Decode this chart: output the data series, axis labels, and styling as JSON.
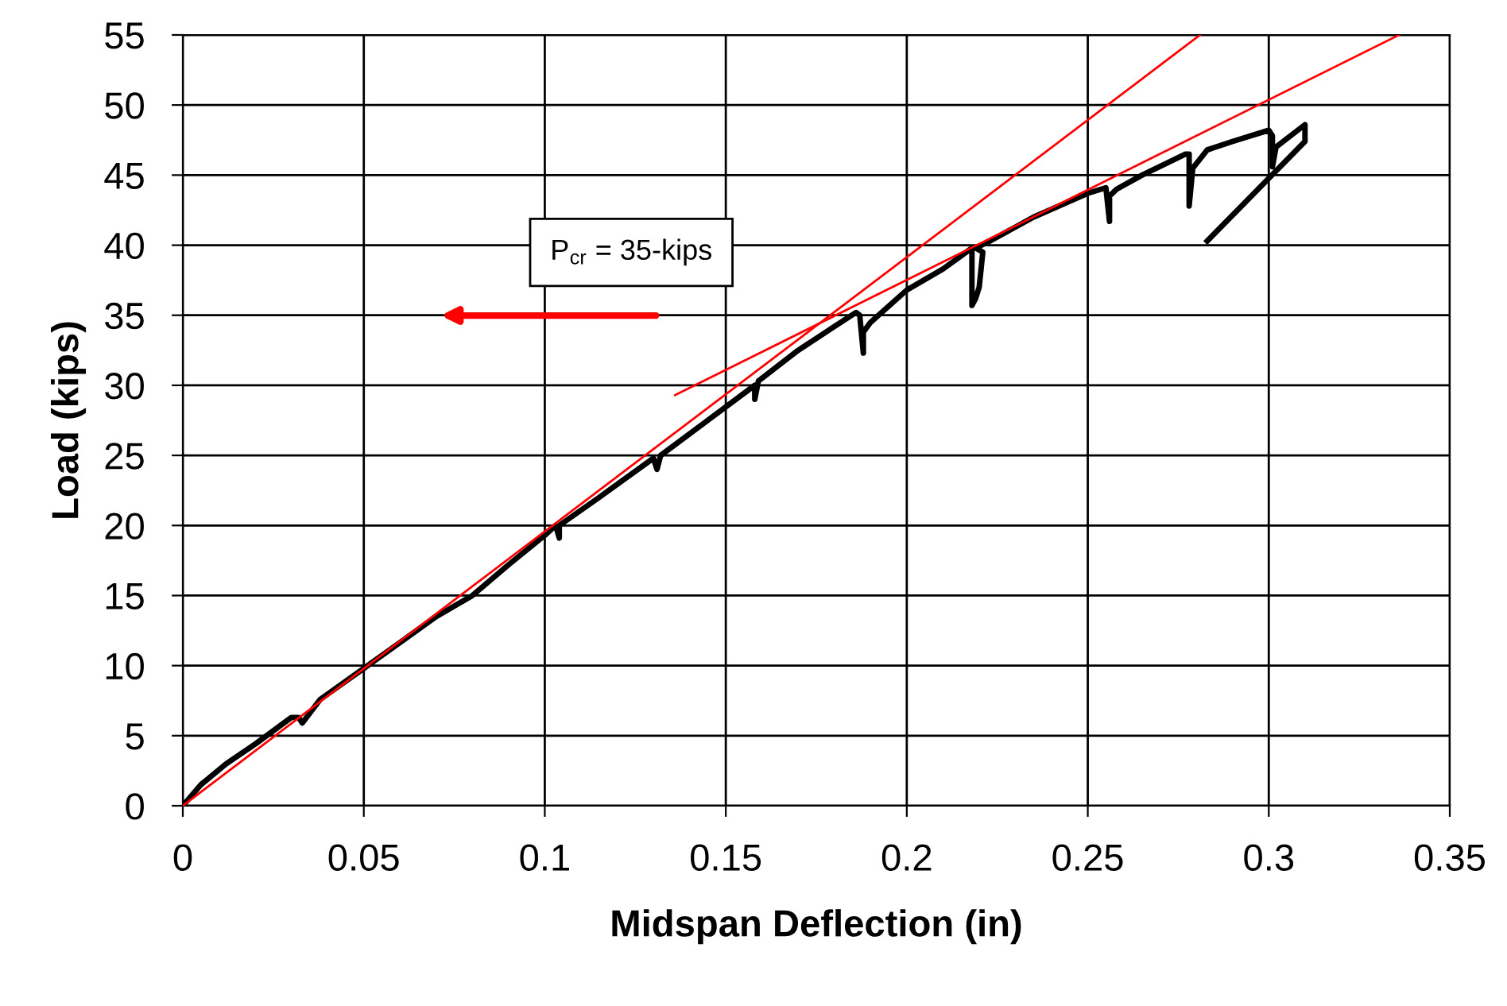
{
  "chart_data": {
    "type": "line",
    "xlabel": "Midspan Deflection (in)",
    "ylabel": "Load (kips)",
    "xlim": [
      0,
      0.35
    ],
    "xticks": [
      0,
      0.05,
      0.1,
      0.15,
      0.2,
      0.25,
      0.3,
      0.35
    ],
    "ylim": [
      0,
      55
    ],
    "yticks": [
      0,
      5,
      10,
      15,
      20,
      25,
      30,
      35,
      40,
      45,
      50,
      55
    ],
    "grid": true,
    "legend": false,
    "marker": "none",
    "line_style": "solid",
    "series": [
      {
        "color": "#000000",
        "x": [
          0,
          0.005,
          0.012,
          0.02,
          0.03,
          0.032,
          0.033,
          0.038,
          0.05,
          0.07,
          0.08,
          0.09,
          0.1,
          0.103,
          0.104,
          0.104,
          0.115,
          0.13,
          0.131,
          0.132,
          0.145,
          0.158,
          0.158,
          0.159,
          0.17,
          0.18,
          0.186,
          0.187,
          0.188,
          0.188,
          0.19,
          0.2,
          0.21,
          0.218,
          0.218,
          0.219,
          0.22,
          0.221,
          0.219,
          0.223,
          0.235,
          0.25,
          0.255,
          0.256,
          0.256,
          0.258,
          0.265,
          0.277,
          0.278,
          0.278,
          0.279,
          0.283,
          0.29,
          0.3,
          0.301,
          0.301,
          0.302,
          0.31,
          0.31,
          0.283
        ],
        "values": [
          0,
          1.5,
          3,
          4.4,
          6.3,
          6.3,
          5.9,
          7.6,
          9.8,
          13.5,
          15,
          17.2,
          19.3,
          20,
          19.1,
          20,
          22,
          24.8,
          24,
          25,
          27.5,
          30,
          29,
          30.3,
          32.5,
          34.2,
          35.2,
          35,
          32.3,
          33.8,
          34.5,
          36.8,
          38.3,
          39.8,
          35.7,
          36.2,
          37,
          39.5,
          39.8,
          40.3,
          42,
          43.7,
          44.1,
          41.7,
          43.5,
          44,
          45,
          46.5,
          46.5,
          42.8,
          45.5,
          46.8,
          47.4,
          48.2,
          47.8,
          45.6,
          47,
          48.6,
          47.4,
          40.3
        ]
      },
      {
        "color": "#ff0000",
        "x": [
          0,
          0.281
        ],
        "values": [
          0,
          55
        ]
      },
      {
        "color": "#ff0000",
        "x": [
          0.136,
          0.336
        ],
        "values": [
          29.3,
          55
        ]
      }
    ],
    "annotations": [
      "P$_{cr}$ = 35-kips"
    ]
  }
}
